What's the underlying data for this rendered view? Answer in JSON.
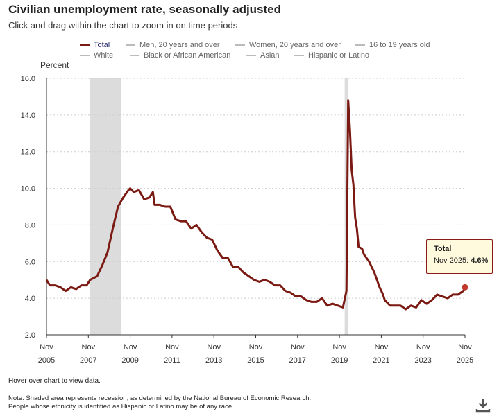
{
  "header": {
    "title": "Civilian unemployment rate, seasonally adjusted",
    "subtitle": "Click and drag within the chart to zoom in on time periods"
  },
  "legend": {
    "items": [
      {
        "label": "Total",
        "active": true
      },
      {
        "label": "Men, 20 years and over",
        "active": false
      },
      {
        "label": "Women, 20 years and over",
        "active": false
      },
      {
        "label": "16 to 19 years old",
        "active": false
      },
      {
        "label": "White",
        "active": false
      },
      {
        "label": "Black or African American",
        "active": false
      },
      {
        "label": "Asian",
        "active": false
      },
      {
        "label": "Hispanic or Latino",
        "active": false
      }
    ]
  },
  "tooltip": {
    "title": "Total",
    "label": "Nov 2025:",
    "value": "4.6%"
  },
  "footer": {
    "hover_note": "Hover over chart to view data.",
    "note_line1": "Note: Shaded area represents recession, as determined by the National Bureau of Economic Research.",
    "note_line2": "People whose ethnicity is identified as Hispanic or Latino may be of any race."
  },
  "colors": {
    "series": "#7b1a12",
    "recession": "#dcdcdc",
    "gridline": "#cccccc",
    "tooltip_bg": "#fff9dd"
  },
  "icons": {
    "download": "download-icon"
  },
  "chart_data": {
    "type": "line",
    "ylabel": "Percent",
    "ylim": [
      2.0,
      16.0
    ],
    "yticks": [
      "2.0",
      "4.0",
      "6.0",
      "8.0",
      "10.0",
      "12.0",
      "14.0",
      "16.0"
    ],
    "xticks": [
      {
        "month": "Nov",
        "year": "2005",
        "t": 2005.833
      },
      {
        "month": "Nov",
        "year": "2007",
        "t": 2007.833
      },
      {
        "month": "Nov",
        "year": "2009",
        "t": 2009.833
      },
      {
        "month": "Nov",
        "year": "2011",
        "t": 2011.833
      },
      {
        "month": "Nov",
        "year": "2013",
        "t": 2013.833
      },
      {
        "month": "Nov",
        "year": "2015",
        "t": 2015.833
      },
      {
        "month": "Nov",
        "year": "2017",
        "t": 2017.833
      },
      {
        "month": "Nov",
        "year": "2019",
        "t": 2019.833
      },
      {
        "month": "Nov",
        "year": "2021",
        "t": 2021.833
      },
      {
        "month": "Nov",
        "year": "2023",
        "t": 2023.833
      },
      {
        "month": "Nov",
        "year": "2025",
        "t": 2025.833
      }
    ],
    "xlim": [
      2005.833,
      2025.833
    ],
    "grid": true,
    "recessions": [
      {
        "start": 2007.917,
        "end": 2009.417
      },
      {
        "start": 2020.083,
        "end": 2020.25
      }
    ],
    "series": [
      {
        "name": "Total",
        "points": [
          [
            2005.833,
            5.0
          ],
          [
            2006.0,
            4.7
          ],
          [
            2006.25,
            4.7
          ],
          [
            2006.5,
            4.6
          ],
          [
            2006.75,
            4.4
          ],
          [
            2007.0,
            4.6
          ],
          [
            2007.25,
            4.5
          ],
          [
            2007.5,
            4.7
          ],
          [
            2007.75,
            4.7
          ],
          [
            2007.917,
            5.0
          ],
          [
            2008.25,
            5.2
          ],
          [
            2008.5,
            5.8
          ],
          [
            2008.75,
            6.5
          ],
          [
            2009.0,
            7.8
          ],
          [
            2009.25,
            9.0
          ],
          [
            2009.5,
            9.5
          ],
          [
            2009.75,
            9.9
          ],
          [
            2009.833,
            10.0
          ],
          [
            2010.0,
            9.8
          ],
          [
            2010.25,
            9.9
          ],
          [
            2010.5,
            9.4
          ],
          [
            2010.75,
            9.5
          ],
          [
            2010.917,
            9.8
          ],
          [
            2011.0,
            9.1
          ],
          [
            2011.25,
            9.1
          ],
          [
            2011.5,
            9.0
          ],
          [
            2011.75,
            9.0
          ],
          [
            2012.0,
            8.3
          ],
          [
            2012.25,
            8.2
          ],
          [
            2012.5,
            8.2
          ],
          [
            2012.75,
            7.8
          ],
          [
            2013.0,
            8.0
          ],
          [
            2013.25,
            7.6
          ],
          [
            2013.5,
            7.3
          ],
          [
            2013.75,
            7.2
          ],
          [
            2014.0,
            6.6
          ],
          [
            2014.25,
            6.2
          ],
          [
            2014.5,
            6.2
          ],
          [
            2014.75,
            5.7
          ],
          [
            2015.0,
            5.7
          ],
          [
            2015.25,
            5.4
          ],
          [
            2015.5,
            5.2
          ],
          [
            2015.75,
            5.0
          ],
          [
            2016.0,
            4.9
          ],
          [
            2016.25,
            5.0
          ],
          [
            2016.5,
            4.9
          ],
          [
            2016.75,
            4.7
          ],
          [
            2017.0,
            4.7
          ],
          [
            2017.25,
            4.4
          ],
          [
            2017.5,
            4.3
          ],
          [
            2017.75,
            4.1
          ],
          [
            2018.0,
            4.1
          ],
          [
            2018.25,
            3.9
          ],
          [
            2018.5,
            3.8
          ],
          [
            2018.75,
            3.8
          ],
          [
            2019.0,
            4.0
          ],
          [
            2019.25,
            3.6
          ],
          [
            2019.5,
            3.7
          ],
          [
            2019.75,
            3.6
          ],
          [
            2020.0,
            3.5
          ],
          [
            2020.167,
            4.4
          ],
          [
            2020.25,
            14.8
          ],
          [
            2020.333,
            13.2
          ],
          [
            2020.417,
            11.0
          ],
          [
            2020.5,
            10.2
          ],
          [
            2020.583,
            8.4
          ],
          [
            2020.667,
            7.8
          ],
          [
            2020.75,
            6.8
          ],
          [
            2020.917,
            6.7
          ],
          [
            2021.0,
            6.4
          ],
          [
            2021.25,
            6.0
          ],
          [
            2021.5,
            5.4
          ],
          [
            2021.75,
            4.6
          ],
          [
            2021.917,
            4.2
          ],
          [
            2022.0,
            3.9
          ],
          [
            2022.25,
            3.6
          ],
          [
            2022.5,
            3.6
          ],
          [
            2022.75,
            3.6
          ],
          [
            2023.0,
            3.4
          ],
          [
            2023.25,
            3.6
          ],
          [
            2023.5,
            3.5
          ],
          [
            2023.75,
            3.9
          ],
          [
            2024.0,
            3.7
          ],
          [
            2024.25,
            3.9
          ],
          [
            2024.5,
            4.2
          ],
          [
            2024.75,
            4.1
          ],
          [
            2025.0,
            4.0
          ],
          [
            2025.25,
            4.2
          ],
          [
            2025.5,
            4.2
          ],
          [
            2025.75,
            4.4
          ],
          [
            2025.833,
            4.6
          ]
        ]
      }
    ],
    "highlight": {
      "t": 2025.833,
      "value": 4.6
    }
  }
}
